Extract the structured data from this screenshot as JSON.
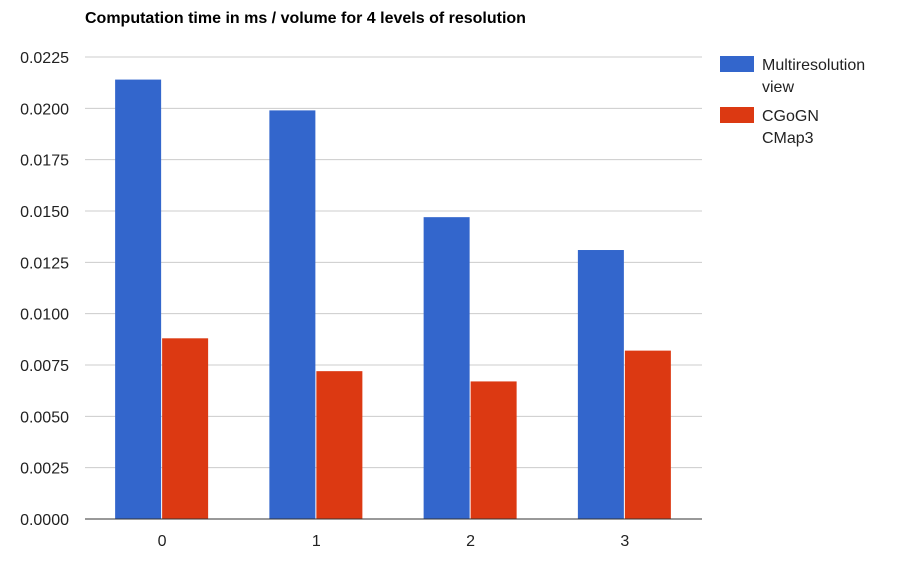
{
  "chart_data": {
    "type": "bar",
    "title": "Computation time in ms / volume for 4 levels of resolution",
    "xlabel": "",
    "ylabel": "",
    "categories": [
      "0",
      "1",
      "2",
      "3"
    ],
    "series": [
      {
        "name": "Multiresolution view",
        "legend_lines": [
          "Multiresolution",
          "view"
        ],
        "color": "#3366cc",
        "values": [
          0.0214,
          0.0199,
          0.0147,
          0.0131
        ]
      },
      {
        "name": "CGoGN CMap3",
        "legend_lines": [
          "CGoGN",
          "CMap3"
        ],
        "color": "#dc3912",
        "values": [
          0.0088,
          0.0072,
          0.0067,
          0.0082
        ]
      }
    ],
    "ylim": [
      0,
      0.0225
    ],
    "yticks": [
      "0.0000",
      "0.0025",
      "0.0050",
      "0.0075",
      "0.0100",
      "0.0125",
      "0.0150",
      "0.0175",
      "0.0200",
      "0.0225"
    ],
    "grid": true,
    "legend_position": "right"
  }
}
